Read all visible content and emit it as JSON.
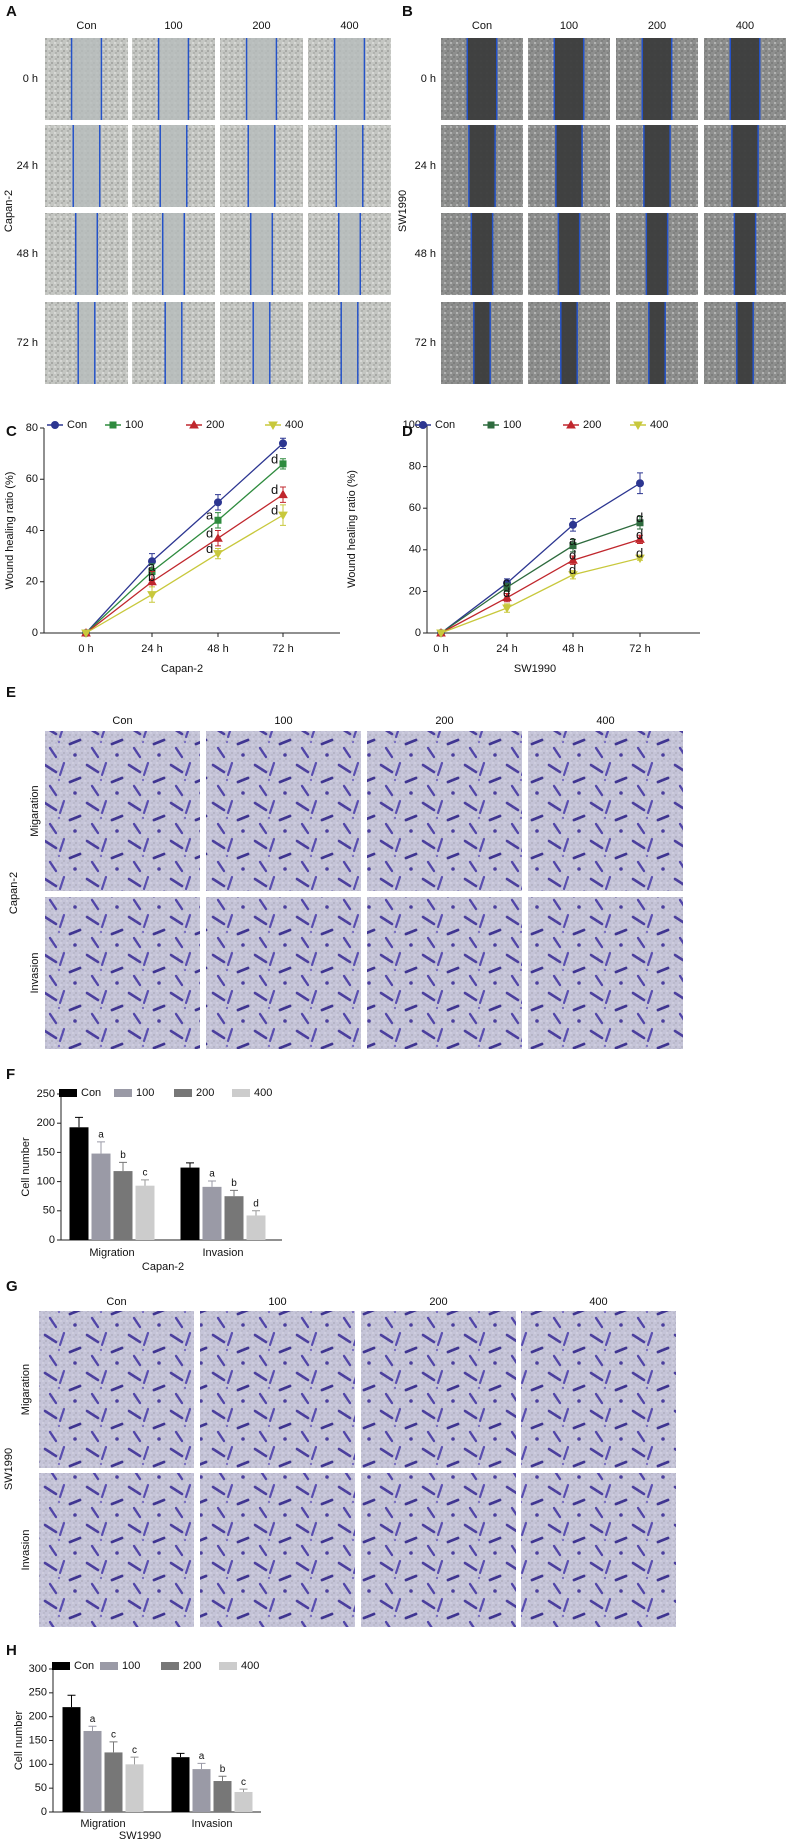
{
  "panels": {
    "letters": [
      "A",
      "B",
      "C",
      "D",
      "E",
      "F",
      "G",
      "H"
    ]
  },
  "wound": {
    "columns": [
      "Con",
      "100",
      "200",
      "400"
    ],
    "rows": [
      "0 h",
      "24 h",
      "48 h",
      "72 h"
    ],
    "cell_lines": [
      "Capan-2",
      "SW1990"
    ]
  },
  "transwell": [
    {
      "columns": [
        "Con",
        "100",
        "200",
        "400"
      ],
      "rows": [
        "Migaration",
        "Invasion"
      ],
      "cell_line": "Capan-2"
    },
    {
      "columns": [
        "Con",
        "100",
        "200",
        "400"
      ],
      "rows": [
        "Migaration",
        "Invasion"
      ],
      "cell_line": "SW1990"
    }
  ],
  "chart_data": [
    {
      "type": "line",
      "y_label": "Wound healing ratio (%)",
      "x_label": "Capan-2",
      "categories": [
        "0 h",
        "24 h",
        "48 h",
        "72 h"
      ],
      "ylim": [
        0,
        80
      ],
      "yticks": [
        0,
        20,
        40,
        60,
        80
      ],
      "series": [
        {
          "name": "Con",
          "color": "#2c3691",
          "marker": "circle",
          "values": [
            0,
            28,
            51,
            74
          ],
          "errors": [
            0,
            3,
            3,
            2
          ]
        },
        {
          "name": "100",
          "color": "#2e8b3e",
          "marker": "square",
          "values": [
            0,
            24,
            44,
            66
          ],
          "errors": [
            0,
            3,
            3,
            2
          ],
          "point_labels": [
            null,
            "a",
            "a",
            "d"
          ]
        },
        {
          "name": "200",
          "color": "#c0272d",
          "marker": "triangle-up",
          "values": [
            0,
            20,
            37,
            54
          ],
          "errors": [
            0,
            4,
            3,
            3
          ],
          "point_labels": [
            null,
            "b",
            "d",
            "d"
          ]
        },
        {
          "name": "400",
          "color": "#c8c83c",
          "marker": "triangle-down",
          "values": [
            0,
            15,
            31,
            46
          ],
          "errors": [
            0,
            3,
            2,
            4
          ],
          "point_labels": [
            null,
            null,
            "d",
            "d"
          ]
        }
      ]
    },
    {
      "type": "line",
      "y_label": "Wound healing ratio (%)",
      "x_label": "SW1990",
      "categories": [
        "0 h",
        "24 h",
        "48 h",
        "72 h"
      ],
      "ylim": [
        0,
        100
      ],
      "yticks": [
        0,
        20,
        40,
        60,
        80,
        100
      ],
      "series": [
        {
          "name": "Con",
          "color": "#2c3691",
          "marker": "circle",
          "values": [
            0,
            24,
            52,
            72
          ],
          "errors": [
            0,
            2,
            3,
            5
          ]
        },
        {
          "name": "100",
          "color": "#2e6b3e",
          "marker": "square",
          "values": [
            0,
            22,
            42,
            53
          ],
          "errors": [
            0,
            2,
            3,
            3
          ],
          "point_labels": [
            null,
            "c",
            "a",
            "d"
          ]
        },
        {
          "name": "200",
          "color": "#c0272d",
          "marker": "triangle-up",
          "values": [
            0,
            17,
            35,
            45
          ],
          "errors": [
            0,
            2,
            2,
            2
          ],
          "point_labels": [
            null,
            "d",
            "d",
            "d"
          ]
        },
        {
          "name": "400",
          "color": "#c8c83c",
          "marker": "triangle-down",
          "values": [
            0,
            12,
            28,
            36
          ],
          "errors": [
            0,
            2,
            2,
            1
          ],
          "point_labels": [
            null,
            null,
            "d",
            "d"
          ]
        }
      ]
    },
    {
      "type": "bar",
      "y_label": "Cell number",
      "x_label": "Capan-2",
      "categories": [
        "Migration",
        "Invasion"
      ],
      "ylim": [
        0,
        250
      ],
      "yticks": [
        0,
        50,
        100,
        150,
        200,
        250
      ],
      "series": [
        {
          "name": "Con",
          "color": "#000000",
          "values": [
            193,
            124
          ],
          "errors": [
            17,
            8
          ]
        },
        {
          "name": "100",
          "color": "#9a9aa6",
          "values": [
            148,
            91
          ],
          "errors": [
            20,
            10
          ],
          "point_labels": [
            "a",
            "a"
          ]
        },
        {
          "name": "200",
          "color": "#777777",
          "values": [
            118,
            75
          ],
          "errors": [
            15,
            10
          ],
          "point_labels": [
            "b",
            "b"
          ]
        },
        {
          "name": "400",
          "color": "#cccccc",
          "values": [
            93,
            42
          ],
          "errors": [
            10,
            8
          ],
          "point_labels": [
            "c",
            "d"
          ]
        }
      ]
    },
    {
      "type": "bar",
      "y_label": "Cell number",
      "x_label": "SW1990",
      "categories": [
        "Migration",
        "Invasion"
      ],
      "ylim": [
        0,
        300
      ],
      "yticks": [
        0,
        50,
        100,
        150,
        200,
        250,
        300
      ],
      "series": [
        {
          "name": "Con",
          "color": "#000000",
          "values": [
            220,
            115
          ],
          "errors": [
            25,
            8
          ]
        },
        {
          "name": "100",
          "color": "#9a9aa6",
          "values": [
            170,
            90
          ],
          "errors": [
            10,
            12
          ],
          "point_labels": [
            "a",
            "a"
          ]
        },
        {
          "name": "200",
          "color": "#777777",
          "values": [
            125,
            65
          ],
          "errors": [
            22,
            10
          ],
          "point_labels": [
            "c",
            "b"
          ]
        },
        {
          "name": "400",
          "color": "#cccccc",
          "values": [
            100,
            42
          ],
          "errors": [
            15,
            6
          ],
          "point_labels": [
            "c",
            "c"
          ]
        }
      ]
    }
  ]
}
